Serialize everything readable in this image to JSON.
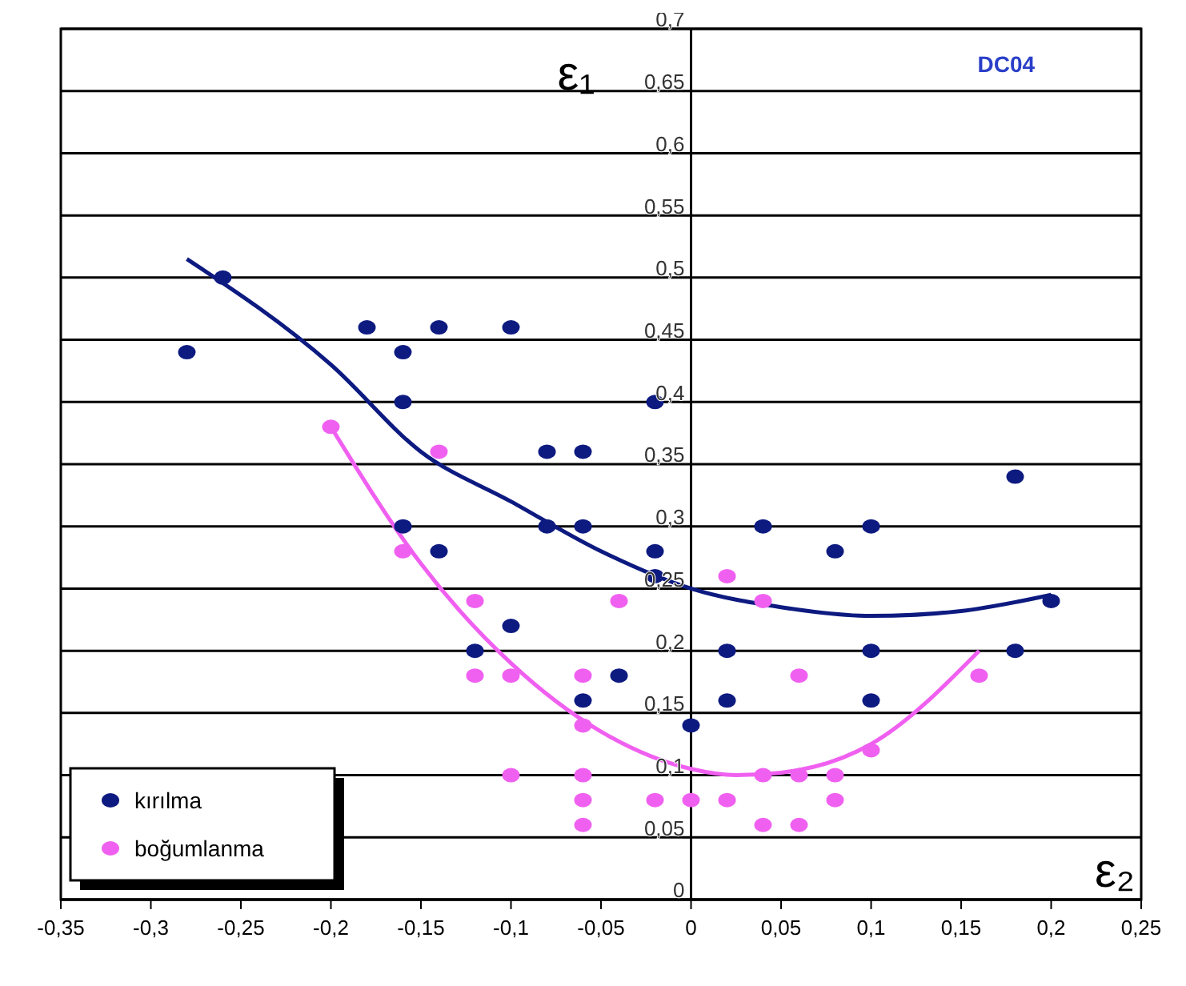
{
  "chart_data": {
    "type": "scatter",
    "title": "DC04",
    "xlabel": "ε₂",
    "ylabel": "ε₁",
    "xlim": [
      -0.35,
      0.25
    ],
    "ylim": [
      0,
      0.7
    ],
    "xticks": [
      {
        "value": -0.35,
        "label": "-0,35"
      },
      {
        "value": -0.3,
        "label": "-0,3"
      },
      {
        "value": -0.25,
        "label": "-0,25"
      },
      {
        "value": -0.2,
        "label": "-0,2"
      },
      {
        "value": -0.15,
        "label": "-0,15"
      },
      {
        "value": -0.1,
        "label": "-0,1"
      },
      {
        "value": -0.05,
        "label": "-0,05"
      },
      0,
      {
        "value": 0.05,
        "label": "0,05"
      },
      {
        "value": 0.1,
        "label": "0,1"
      },
      {
        "value": 0.15,
        "label": "0,15"
      },
      {
        "value": 0.2,
        "label": "0,2"
      },
      {
        "value": 0.25,
        "label": "0,25"
      }
    ],
    "yticks": [
      0,
      {
        "value": 0.05,
        "label": "0,05"
      },
      {
        "value": 0.1,
        "label": "0,1"
      },
      {
        "value": 0.15,
        "label": "0,15"
      },
      {
        "value": 0.2,
        "label": "0,2"
      },
      {
        "value": 0.25,
        "label": "0,25"
      },
      {
        "value": 0.3,
        "label": "0,3"
      },
      {
        "value": 0.35,
        "label": "0,35"
      },
      {
        "value": 0.4,
        "label": "0,4"
      },
      {
        "value": 0.45,
        "label": "0,45"
      },
      {
        "value": 0.5,
        "label": "0,5"
      },
      {
        "value": 0.55,
        "label": "0,55"
      },
      {
        "value": 0.6,
        "label": "0,6"
      },
      {
        "value": 0.65,
        "label": "0,65"
      },
      {
        "value": 0.7,
        "label": "0,7"
      }
    ],
    "grid": "y",
    "legend": "bottom left",
    "marker": "circle",
    "series": [
      {
        "name": "kırılma",
        "color": "#0d1a80",
        "x": [
          -0.28,
          -0.26,
          -0.18,
          -0.16,
          -0.14,
          -0.1,
          -0.16,
          -0.08,
          -0.06,
          -0.02,
          -0.16,
          -0.14,
          -0.08,
          -0.06,
          -0.02,
          -0.02,
          -0.12,
          -0.1,
          -0.04,
          -0.06,
          0,
          0.02,
          0.02,
          0.04,
          0.08,
          0.1,
          0.1,
          0.1,
          0.18,
          0.18,
          0.2
        ],
        "values": [
          0.44,
          0.5,
          0.46,
          0.44,
          0.46,
          0.46,
          0.4,
          0.36,
          0.36,
          0.4,
          0.3,
          0.28,
          0.3,
          0.3,
          0.28,
          0.26,
          0.2,
          0.22,
          0.18,
          0.16,
          0.14,
          0.2,
          0.16,
          0.3,
          0.28,
          0.3,
          0.2,
          0.16,
          0.34,
          0.2,
          0.24
        ]
      },
      {
        "name": "boğumlanma",
        "color": "#f060f0",
        "x": [
          -0.2,
          -0.14,
          -0.16,
          -0.12,
          -0.12,
          -0.1,
          -0.06,
          -0.04,
          0.02,
          0.04,
          0.06,
          0.16,
          -0.06,
          0.1,
          -0.1,
          -0.06,
          0.04,
          0.06,
          0.08,
          -0.06,
          -0.02,
          0,
          0.02,
          0.08,
          -0.06,
          0.04,
          0.06
        ],
        "values": [
          0.38,
          0.36,
          0.28,
          0.24,
          0.18,
          0.18,
          0.18,
          0.24,
          0.26,
          0.24,
          0.18,
          0.18,
          0.14,
          0.12,
          0.1,
          0.1,
          0.1,
          0.1,
          0.1,
          0.08,
          0.08,
          0.08,
          0.08,
          0.08,
          0.06,
          0.06,
          0.06
        ]
      },
      {
        "type": "line",
        "color": "#0d1a80",
        "marker": "none",
        "x": [
          -0.28,
          -0.2,
          -0.15,
          -0.1,
          -0.05,
          0,
          0.05,
          0.1,
          0.15,
          0.2
        ],
        "values": [
          0.515,
          0.43,
          0.36,
          0.32,
          0.28,
          0.25,
          0.235,
          0.228,
          0.232,
          0.245
        ]
      },
      {
        "type": "line",
        "color": "#f060f0",
        "marker": "none",
        "x": [
          -0.2,
          -0.15,
          -0.1,
          -0.05,
          0,
          0.025,
          0.05,
          0.1,
          0.16
        ],
        "values": [
          0.38,
          0.27,
          0.19,
          0.135,
          0.105,
          0.1,
          0.102,
          0.125,
          0.2
        ]
      }
    ]
  }
}
